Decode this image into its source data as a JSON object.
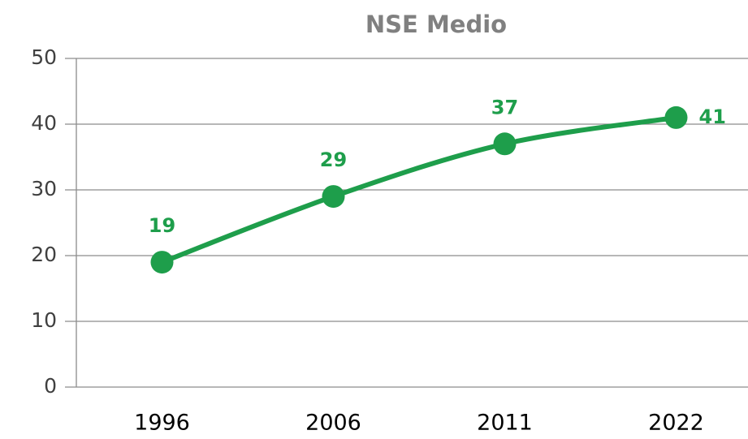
{
  "chart_data": {
    "type": "line",
    "title": "NSE Medio",
    "categories": [
      "1996",
      "2006",
      "2011",
      "2022"
    ],
    "series": [
      {
        "name": "NSE Medio",
        "color": "#1e9e4b",
        "values": [
          19,
          29,
          37,
          41
        ]
      }
    ],
    "ylim": [
      0,
      50
    ],
    "yticks": [
      0,
      10,
      20,
      30,
      40,
      50
    ],
    "grid": true
  }
}
